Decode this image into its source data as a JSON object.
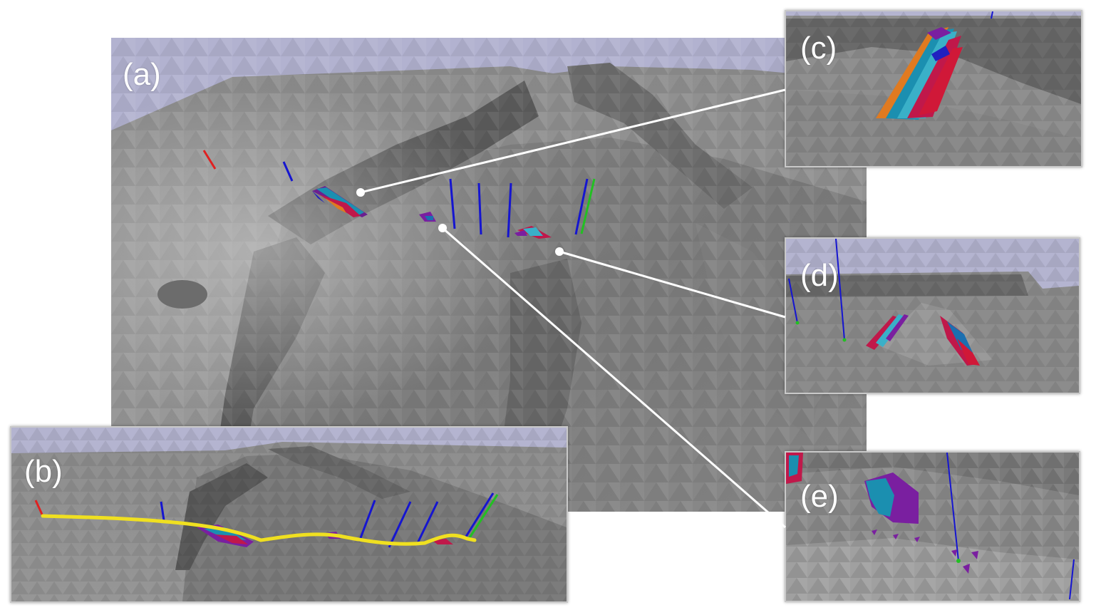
{
  "figure": {
    "panels": [
      {
        "id": "a",
        "label": "(a)"
      },
      {
        "id": "b",
        "label": "(b)"
      },
      {
        "id": "c",
        "label": "(c)"
      },
      {
        "id": "d",
        "label": "(d)"
      },
      {
        "id": "e",
        "label": "(e)"
      }
    ]
  },
  "colors": {
    "sky": "#b3b3cf",
    "terrain_light": "#9a9a9a",
    "terrain_mid": "#7e7e7e",
    "terrain_dark": "#555555",
    "marker_red": "#e02020",
    "marker_blue": "#1515d0",
    "marker_green": "#22c022",
    "path_yellow": "#f0e020",
    "callout_line": "#ffffff"
  },
  "icons": {
    "callout_dot": "white-circle",
    "sensor_markers": "colored-line-segments"
  }
}
